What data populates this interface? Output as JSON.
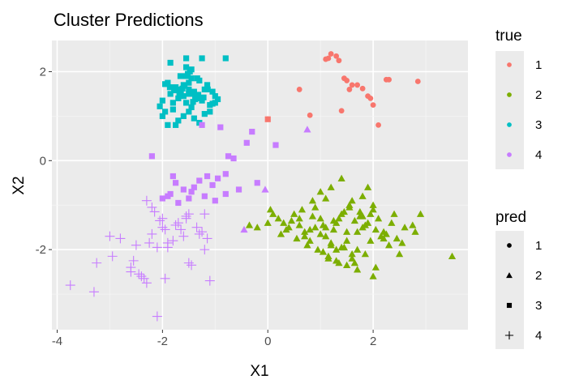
{
  "chart_data": {
    "type": "scatter",
    "title": "Cluster Predictions",
    "xlabel": "X1",
    "ylabel": "X2",
    "xlim": [
      -4.1,
      3.8
    ],
    "ylim": [
      -3.8,
      2.7
    ],
    "xticks": [
      -4,
      -2,
      0,
      2
    ],
    "yticks": [
      -2,
      0,
      2
    ],
    "grid": true,
    "legend_position": "right",
    "legends": {
      "color": {
        "title": "true",
        "entries": [
          {
            "label": "1",
            "color": "#F8766D"
          },
          {
            "label": "2",
            "color": "#7CAE00"
          },
          {
            "label": "3",
            "color": "#00BFC4"
          },
          {
            "label": "4",
            "color": "#C77CFF"
          }
        ]
      },
      "shape": {
        "title": "pred",
        "entries": [
          {
            "label": "1",
            "shape": "circle"
          },
          {
            "label": "2",
            "shape": "triangle"
          },
          {
            "label": "3",
            "shape": "square"
          },
          {
            "label": "4",
            "shape": "plus"
          }
        ]
      }
    },
    "series": [
      {
        "true": "1",
        "pred": "1",
        "x": [
          1.15,
          1.2,
          1.3,
          1.45,
          1.55,
          1.7,
          1.9,
          2.0,
          2.25,
          2.3,
          2.85,
          1.1,
          0.6,
          0.8,
          1.4,
          1.6,
          1.8,
          2.1,
          1.95,
          1.5,
          1.35
        ],
        "y": [
          2.3,
          2.4,
          2.35,
          1.85,
          1.6,
          1.7,
          1.45,
          1.25,
          1.82,
          1.82,
          1.78,
          2.28,
          1.6,
          1.02,
          1.12,
          1.7,
          1.62,
          0.8,
          1.4,
          1.8,
          2.25
        ]
      },
      {
        "true": "1",
        "pred": "3",
        "x": [
          0.0
        ],
        "y": [
          0.93
        ]
      },
      {
        "true": "2",
        "pred": "2",
        "x": [
          0.0,
          0.2,
          0.3,
          0.4,
          0.5,
          0.6,
          0.7,
          0.8,
          0.9,
          1.0,
          1.1,
          1.2,
          1.3,
          1.4,
          1.5,
          1.6,
          1.7,
          1.8,
          1.9,
          2.0,
          2.1,
          2.2,
          2.3,
          2.4,
          2.5,
          2.6,
          2.8,
          2.9,
          3.5,
          0.1,
          0.35,
          0.55,
          0.75,
          0.95,
          1.15,
          1.35,
          1.55,
          1.75,
          1.95,
          2.15,
          2.35,
          2.55,
          2.75,
          0.25,
          0.45,
          0.65,
          0.85,
          1.05,
          1.25,
          1.45,
          1.65,
          1.85,
          2.05,
          1.0,
          1.2,
          1.4,
          1.6,
          1.8,
          2.0,
          1.3,
          1.5,
          1.7,
          0.9,
          1.1,
          1.9,
          2.2,
          2.0,
          -0.2,
          -0.35,
          0.05,
          0.7,
          1.3,
          1.5,
          1.7,
          1.1,
          0.6,
          0.8,
          1.0,
          1.2,
          1.4,
          1.6,
          1.8,
          1.45,
          1.25,
          1.05,
          0.85,
          1.65,
          1.85,
          2.05,
          2.25,
          2.45,
          1.55,
          1.75,
          1.95,
          1.35,
          1.15
        ],
        "y": [
          -1.4,
          -1.3,
          -1.4,
          -1.5,
          -1.2,
          -1.3,
          -1.6,
          -1.8,
          -1.5,
          -1.3,
          -1.7,
          -1.9,
          -1.4,
          -1.2,
          -1.6,
          -2.2,
          -2.0,
          -1.5,
          -1.4,
          -1.1,
          -1.3,
          -1.6,
          -1.9,
          -1.2,
          -2.1,
          -1.5,
          -1.6,
          -1.2,
          -2.15,
          -1.2,
          -1.55,
          -1.75,
          -1.9,
          -2.0,
          -2.2,
          -1.3,
          -1.0,
          -1.25,
          -1.8,
          -1.7,
          -1.4,
          -1.85,
          -1.45,
          -1.65,
          -1.35,
          -1.1,
          -0.9,
          -2.05,
          -1.55,
          -1.95,
          -2.3,
          -2.1,
          -2.4,
          -0.7,
          -0.6,
          -0.4,
          -0.9,
          -0.8,
          -1.0,
          -2.25,
          -2.35,
          -2.45,
          -1.05,
          -0.85,
          -0.6,
          -1.75,
          -2.6,
          -1.5,
          -1.45,
          -1.1,
          -1.7,
          -2.0,
          -1.8,
          -1.6,
          -1.5,
          -1.45,
          -1.55,
          -1.65,
          -1.85,
          -1.95,
          -2.1,
          -1.25,
          -1.15,
          -1.35,
          -1.45,
          -1.25,
          -1.35,
          -1.45,
          -1.55,
          -1.65,
          -1.75,
          -1.05,
          -1.15,
          -1.2,
          -2.3,
          -2.15
        ]
      },
      {
        "true": "3",
        "pred": "3",
        "x": [
          -1.5,
          -1.6,
          -1.4,
          -1.7,
          -1.3,
          -1.8,
          -1.2,
          -1.55,
          -1.45,
          -1.65,
          -1.35,
          -1.75,
          -1.25,
          -1.9,
          -1.1,
          -1.5,
          -1.6,
          -1.4,
          -1.7,
          -1.3,
          -1.85,
          -1.15,
          -2.0,
          -1.0,
          -1.5,
          -1.55,
          -1.45,
          -1.62,
          -1.38,
          -1.58,
          -1.42,
          -1.68,
          -1.32,
          -1.78,
          -1.22,
          -1.95,
          -1.05,
          -2.05,
          -0.95,
          -1.5,
          -1.8,
          -1.2,
          -1.6,
          -1.4,
          -1.7,
          -1.3,
          -1.9,
          -1.1,
          -2.0,
          -1.0,
          -1.52,
          -1.48,
          -1.66,
          -1.34,
          -1.86,
          -1.14,
          -1.45,
          -1.55,
          -1.85,
          -1.25,
          -0.8,
          -1.55,
          -1.75,
          -1.95,
          -1.05
        ],
        "y": [
          1.6,
          1.7,
          1.5,
          1.4,
          1.8,
          1.3,
          1.6,
          1.9,
          1.2,
          1.55,
          1.45,
          1.65,
          1.35,
          1.75,
          1.25,
          1.5,
          1.45,
          1.55,
          1.6,
          1.4,
          1.5,
          1.7,
          1.35,
          1.45,
          1.75,
          1.3,
          1.85,
          1.62,
          1.38,
          1.68,
          1.32,
          1.52,
          1.48,
          1.58,
          1.42,
          1.72,
          1.28,
          1.22,
          1.38,
          1.1,
          1.15,
          1.05,
          1.0,
          0.95,
          0.9,
          0.85,
          0.8,
          1.1,
          1.0,
          1.3,
          1.95,
          2.0,
          1.9,
          1.85,
          1.65,
          1.6,
          2.05,
          2.1,
          2.2,
          2.3,
          2.3,
          2.3,
          0.8,
          1.1,
          1.55
        ]
      },
      {
        "true": "4",
        "pred": "2",
        "x": [
          0.75,
          -0.05,
          -0.45
        ],
        "y": [
          0.7,
          -0.65,
          -1.55
        ]
      },
      {
        "true": "4",
        "pred": "3",
        "x": [
          -2.2,
          -1.9,
          -1.8,
          -1.75,
          -1.6,
          -1.45,
          -1.3,
          -1.2,
          -1.0,
          -0.8,
          -0.65,
          -0.4,
          -0.3,
          -0.2,
          0.15,
          -0.95,
          -1.05,
          -1.5,
          -2.0,
          -1.85,
          -1.7,
          -0.75,
          -0.55,
          -1.4,
          -0.9,
          -1.15,
          -0.8,
          -1.25
        ],
        "y": [
          0.1,
          -0.8,
          -0.35,
          -0.5,
          -0.65,
          -0.7,
          -0.45,
          -0.8,
          -0.9,
          -0.3,
          0.05,
          0.4,
          0.65,
          -0.5,
          0.35,
          -0.4,
          -0.55,
          -0.85,
          -0.85,
          -0.75,
          -0.95,
          0.1,
          -0.65,
          -0.6,
          0.75,
          -0.35,
          -0.75,
          0.8
        ]
      },
      {
        "true": "4",
        "pred": "4",
        "x": [
          -3.75,
          -3.3,
          -3.25,
          -3.0,
          -2.95,
          -2.8,
          -2.6,
          -2.55,
          -2.5,
          -2.4,
          -2.3,
          -2.25,
          -2.2,
          -2.1,
          -2.05,
          -2.0,
          -1.95,
          -1.9,
          -1.8,
          -1.7,
          -1.65,
          -1.55,
          -1.5,
          -1.45,
          -1.35,
          -1.25,
          -1.2,
          -1.15,
          -1.1,
          -2.3,
          -2.6,
          -2.15,
          -1.5,
          -2.0,
          -1.75,
          -1.6,
          -2.35,
          -2.1,
          -2.45,
          -1.2,
          -1.3,
          -1.9,
          -1.55,
          -2.2,
          -1.95
        ],
        "y": [
          -2.8,
          -2.95,
          -2.3,
          -1.7,
          -2.15,
          -1.75,
          -2.4,
          -2.25,
          -1.9,
          -2.6,
          -2.75,
          -1.85,
          -1.65,
          -3.5,
          -1.35,
          -1.5,
          -2.65,
          -1.95,
          -1.8,
          -1.4,
          -1.55,
          -1.3,
          -1.2,
          -2.35,
          -1.5,
          -1.6,
          -2.0,
          -1.75,
          -2.7,
          -0.9,
          -2.5,
          -1.15,
          -2.3,
          -1.3,
          -1.45,
          -1.7,
          -2.65,
          -1.95,
          -2.55,
          -1.2,
          -1.65,
          -1.85,
          -1.25,
          -1.05,
          -1.55
        ]
      }
    ]
  }
}
